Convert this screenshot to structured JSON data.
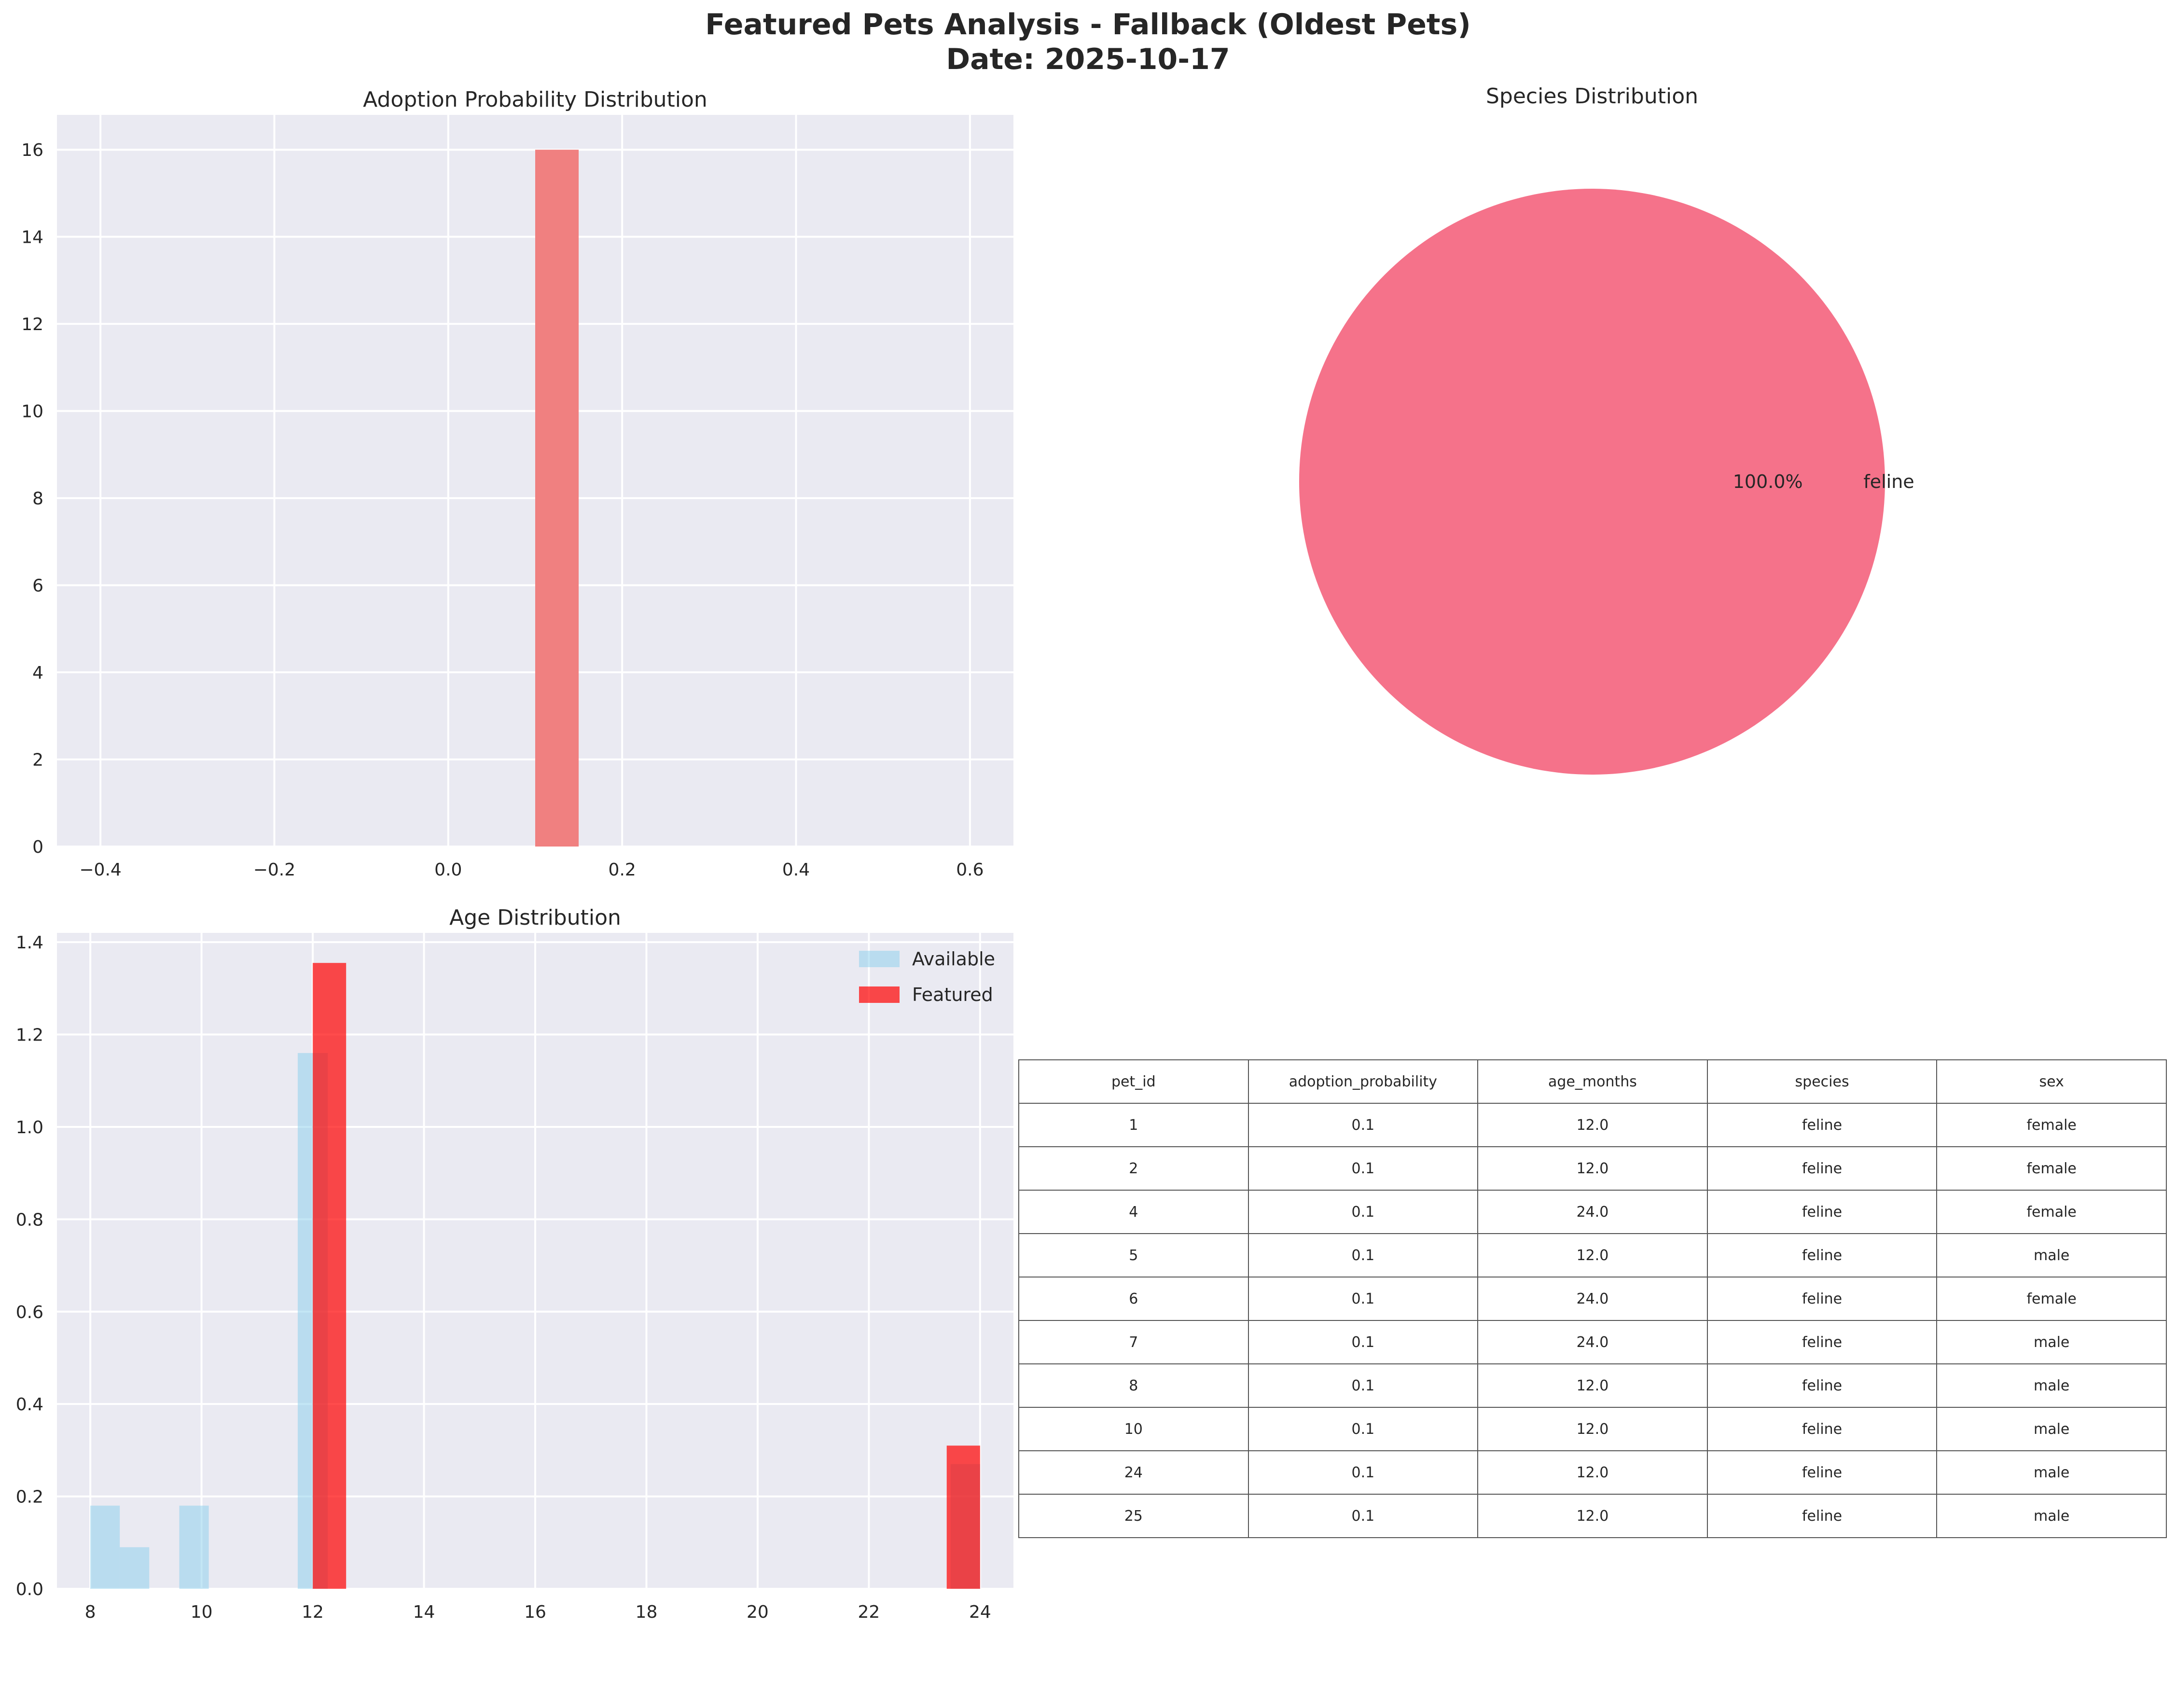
{
  "figure": {
    "title_line1": "Featured Pets Analysis - Fallback (Oldest Pets)",
    "title_line2": "Date: 2025-10-17"
  },
  "colors": {
    "axes_bg": "#eaeaf2",
    "grid": "#ffffff",
    "prob_bar": "#f08080",
    "pie": "#f5728a",
    "available": "#87ceeb",
    "featured": "#ff0000",
    "text": "#262626"
  },
  "chart_data": [
    {
      "type": "bar",
      "title": "Adoption Probability Distribution",
      "xlim": [
        -0.45,
        0.65
      ],
      "ylim": [
        0,
        16.8
      ],
      "xticks": [
        -0.4,
        -0.2,
        0.0,
        0.2,
        0.4,
        0.6
      ],
      "xtick_labels": [
        "−0.4",
        "−0.2",
        "0.0",
        "0.2",
        "0.4",
        "0.6"
      ],
      "yticks": [
        0,
        2,
        4,
        6,
        8,
        10,
        12,
        14,
        16
      ],
      "grid": true,
      "bins": [
        {
          "x0": 0.1,
          "x1": 0.15,
          "count": 16
        }
      ]
    },
    {
      "type": "pie",
      "title": "Species Distribution",
      "labels": [
        "feline"
      ],
      "values": [
        100.0
      ],
      "autopct": [
        "100.0%"
      ]
    },
    {
      "type": "bar",
      "title": "Age Distribution",
      "xlim": [
        7.4,
        24.6
      ],
      "ylim": [
        0,
        1.42
      ],
      "xticks": [
        8,
        10,
        12,
        14,
        16,
        18,
        20,
        22,
        24
      ],
      "yticks": [
        0.0,
        0.2,
        0.4,
        0.6,
        0.8,
        1.0,
        1.2,
        1.4
      ],
      "ytick_labels": [
        "0.0",
        "0.2",
        "0.4",
        "0.6",
        "0.8",
        "1.0",
        "1.2",
        "1.4"
      ],
      "grid": true,
      "legend_position": "top-right",
      "series": [
        {
          "name": "Available",
          "bins": [
            {
              "x0": 8.0,
              "x1": 8.53,
              "value": 0.18
            },
            {
              "x0": 8.53,
              "x1": 9.06,
              "value": 0.09
            },
            {
              "x0": 9.6,
              "x1": 10.13,
              "value": 0.18
            },
            {
              "x0": 11.73,
              "x1": 12.27,
              "value": 1.16
            },
            {
              "x0": 23.47,
              "x1": 24.0,
              "value": 0.27
            }
          ]
        },
        {
          "name": "Featured",
          "bins": [
            {
              "x0": 12.0,
              "x1": 12.6,
              "value": 1.355
            },
            {
              "x0": 23.4,
              "x1": 24.0,
              "value": 0.31
            }
          ]
        }
      ]
    },
    {
      "type": "table",
      "columns": [
        "pet_id",
        "adoption_probability",
        "age_months",
        "species",
        "sex"
      ],
      "rows": [
        [
          "1",
          "0.1",
          "12.0",
          "feline",
          "female"
        ],
        [
          "2",
          "0.1",
          "12.0",
          "feline",
          "female"
        ],
        [
          "4",
          "0.1",
          "24.0",
          "feline",
          "female"
        ],
        [
          "5",
          "0.1",
          "12.0",
          "feline",
          "male"
        ],
        [
          "6",
          "0.1",
          "24.0",
          "feline",
          "female"
        ],
        [
          "7",
          "0.1",
          "24.0",
          "feline",
          "male"
        ],
        [
          "8",
          "0.1",
          "12.0",
          "feline",
          "male"
        ],
        [
          "10",
          "0.1",
          "12.0",
          "feline",
          "male"
        ],
        [
          "24",
          "0.1",
          "12.0",
          "feline",
          "male"
        ],
        [
          "25",
          "0.1",
          "12.0",
          "feline",
          "male"
        ]
      ]
    }
  ]
}
